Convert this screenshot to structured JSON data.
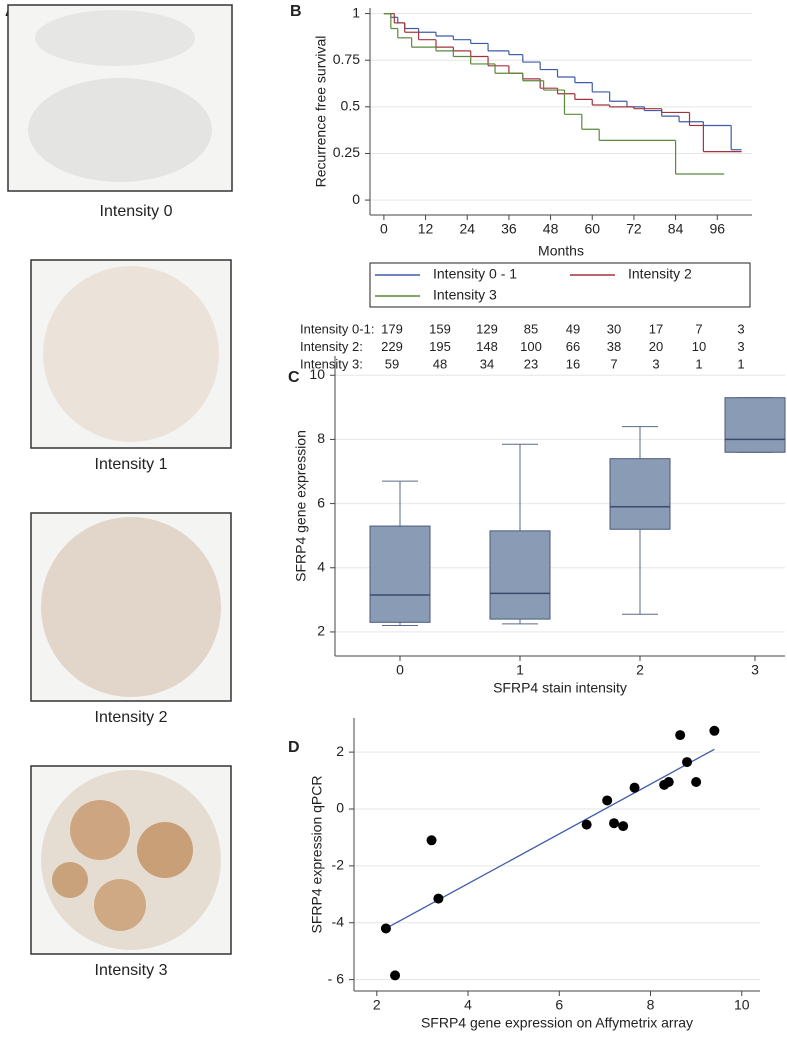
{
  "panel_labels": [
    "A",
    "B",
    "C",
    "D"
  ],
  "panel_a": {
    "captions": [
      "Intensity 0",
      "Intensity 1",
      "Intensity 2",
      "Intensity 3"
    ]
  },
  "risk_table": {
    "rows": [
      {
        "label": "Intensity 0-1:",
        "values": [
          "179",
          "159",
          "129",
          "85",
          "49",
          "30",
          "17",
          "7",
          "3"
        ]
      },
      {
        "label": "Intensity 2:",
        "values": [
          "229",
          "195",
          "148",
          "100",
          "66",
          "38",
          "20",
          "10",
          "3"
        ]
      },
      {
        "label": "Intensity 3:",
        "values": [
          "59",
          "48",
          "34",
          "23",
          "16",
          "7",
          "3",
          "1",
          "1"
        ]
      }
    ]
  },
  "chart_data": [
    {
      "type": "step",
      "x_label": "Months",
      "y_label": "Recurrence free survival",
      "xlim": [
        -4,
        106
      ],
      "ylim": [
        -0.08,
        1.03
      ],
      "xticks": [
        0,
        12,
        24,
        36,
        48,
        60,
        72,
        84,
        96
      ],
      "yticks": [
        0,
        0.25,
        0.5,
        0.75,
        1
      ],
      "grid": true,
      "series": [
        {
          "name": "Intensity 0 - 1",
          "color": "#3d5ba8",
          "x": [
            0,
            2,
            4,
            6,
            10,
            15,
            20,
            25,
            30,
            36,
            40,
            45,
            50,
            55,
            60,
            65,
            70,
            75,
            80,
            85,
            92,
            100,
            103
          ],
          "values": [
            1,
            0.98,
            0.95,
            0.92,
            0.9,
            0.88,
            0.86,
            0.84,
            0.8,
            0.78,
            0.74,
            0.7,
            0.66,
            0.63,
            0.58,
            0.53,
            0.5,
            0.48,
            0.45,
            0.42,
            0.4,
            0.27,
            0.27
          ]
        },
        {
          "name": "Intensity 2",
          "color": "#a3343c",
          "x": [
            0,
            3,
            6,
            10,
            15,
            20,
            25,
            30,
            36,
            40,
            45,
            50,
            55,
            60,
            65,
            72,
            80,
            88,
            92,
            103
          ],
          "values": [
            1,
            0.95,
            0.9,
            0.86,
            0.82,
            0.8,
            0.77,
            0.72,
            0.68,
            0.65,
            0.6,
            0.57,
            0.54,
            0.51,
            0.5,
            0.49,
            0.47,
            0.4,
            0.26,
            0.26
          ]
        },
        {
          "name": "Intensity 3",
          "color": "#5a8a3a",
          "x": [
            0,
            2,
            4,
            8,
            15,
            20,
            25,
            32,
            40,
            46,
            52,
            57,
            62,
            70,
            84,
            98
          ],
          "values": [
            1,
            0.92,
            0.87,
            0.82,
            0.8,
            0.77,
            0.73,
            0.68,
            0.64,
            0.59,
            0.46,
            0.38,
            0.32,
            0.32,
            0.14,
            0.14
          ]
        }
      ]
    },
    {
      "type": "box",
      "x_label": "SFRP4 stain intensity",
      "y_label": "SFRP4 gene expression",
      "categories": [
        "0",
        "1",
        "2",
        "3"
      ],
      "ylim": [
        1.25,
        10.6
      ],
      "yticks": [
        2,
        4,
        6,
        8,
        10
      ],
      "grid": true,
      "color": "#8a9bb6",
      "whisker_low": [
        2.2,
        2.25,
        2.55,
        7.6
      ],
      "q1": [
        2.3,
        2.4,
        5.2,
        7.6
      ],
      "median": [
        3.15,
        3.2,
        5.9,
        8.0
      ],
      "q3": [
        5.3,
        5.15,
        7.4,
        9.3
      ],
      "whisker_high": [
        6.7,
        7.85,
        8.4,
        9.3
      ]
    },
    {
      "type": "scatter",
      "x_label": "SFRP4 gene expression on Affymetrix array",
      "y_label": "SFRP4 expression qPCR",
      "xlim": [
        1.5,
        10.4
      ],
      "ylim": [
        -6.4,
        3.2
      ],
      "xticks": [
        2,
        4,
        6,
        8,
        10
      ],
      "yticks": [
        {
          "value": -6,
          "label": "- 6"
        },
        -4,
        -2,
        0,
        2
      ],
      "grid": true,
      "color": "#000000",
      "x": [
        2.2,
        2.4,
        3.2,
        3.35,
        6.6,
        7.05,
        7.2,
        7.4,
        7.65,
        8.3,
        8.4,
        8.65,
        8.8,
        9.0,
        9.4
      ],
      "values": [
        -4.2,
        -5.85,
        -1.1,
        -3.15,
        -0.55,
        0.3,
        -0.5,
        -0.6,
        0.75,
        0.85,
        0.95,
        2.6,
        1.65,
        0.95,
        2.75
      ],
      "fit": {
        "color": "#3d5ba8",
        "x": [
          2.2,
          9.4
        ],
        "values": [
          -4.2,
          2.1
        ]
      }
    }
  ]
}
